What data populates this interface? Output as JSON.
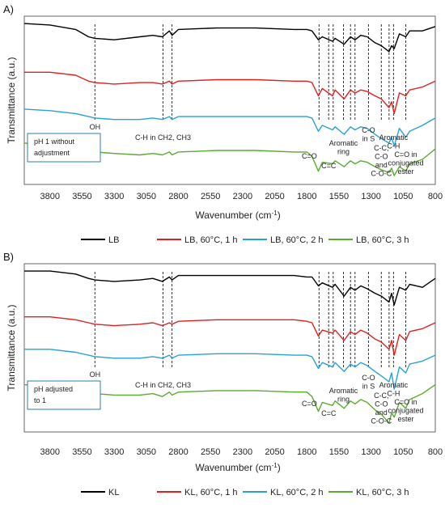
{
  "chart_data": [
    {
      "type": "line",
      "panel_label": "A)",
      "ylabel": "Transmittance (a.u.)",
      "xlabel": "Wavenumber (cm",
      "xlabel_sup": "-1",
      "xlabel_end": ")",
      "xlim": [
        4000,
        800
      ],
      "x_ticks": [
        "3800",
        "3550",
        "3300",
        "3050",
        "2800",
        "2550",
        "2300",
        "2050",
        "1800",
        "1550",
        "1300",
        "1050",
        "800"
      ],
      "box_text": [
        "pH 1 without",
        "adjustment"
      ],
      "series": [
        {
          "name": "LB",
          "color": "#000000",
          "x": [
            4000,
            3800,
            3600,
            3500,
            3450,
            3300,
            3100,
            3000,
            2925,
            2870,
            2850,
            2800,
            2500,
            2200,
            1900,
            1800,
            1760,
            1710,
            1680,
            1600,
            1580,
            1510,
            1460,
            1425,
            1380,
            1330,
            1270,
            1220,
            1160,
            1140,
            1120,
            1080,
            1030,
            1000,
            900,
            800
          ],
          "y": [
            97,
            96,
            93,
            88,
            87,
            86,
            88,
            89,
            88,
            92,
            89,
            93,
            94,
            94,
            93,
            93,
            92,
            86,
            88,
            85,
            87,
            83,
            88,
            86,
            89,
            88,
            84,
            82,
            78,
            82,
            80,
            90,
            88,
            92,
            92,
            95
          ]
        },
        {
          "name": "LB, 60°C, 1 h",
          "color": "#e02020",
          "x": [
            4000,
            3800,
            3600,
            3500,
            3450,
            3300,
            3100,
            3000,
            2925,
            2870,
            2850,
            2800,
            2500,
            2200,
            1900,
            1800,
            1760,
            1710,
            1680,
            1600,
            1580,
            1510,
            1460,
            1425,
            1380,
            1330,
            1270,
            1220,
            1160,
            1140,
            1120,
            1080,
            1030,
            1000,
            900,
            800
          ],
          "y": [
            64,
            64,
            62,
            58,
            57,
            56,
            57,
            57,
            56,
            58,
            56,
            58,
            59,
            59,
            58,
            58,
            57,
            48,
            53,
            48,
            52,
            46,
            52,
            50,
            52,
            51,
            48,
            46,
            40,
            44,
            36,
            50,
            48,
            52,
            54,
            58
          ]
        },
        {
          "name": "LB, 60°C, 2 h",
          "color": "#2aa0d8",
          "x": [
            4000,
            3800,
            3600,
            3500,
            3450,
            3300,
            3100,
            3000,
            2925,
            2870,
            2850,
            2800,
            2500,
            2200,
            1900,
            1800,
            1760,
            1710,
            1680,
            1600,
            1580,
            1510,
            1460,
            1425,
            1380,
            1330,
            1270,
            1220,
            1160,
            1140,
            1120,
            1080,
            1030,
            1000,
            900,
            800
          ],
          "y": [
            39,
            38,
            36,
            34,
            33,
            32,
            32,
            33,
            32,
            34,
            32,
            34,
            34,
            34,
            34,
            34,
            33,
            24,
            28,
            25,
            27,
            22,
            27,
            25,
            27,
            26,
            22,
            19,
            16,
            20,
            14,
            26,
            20,
            24,
            28,
            33
          ]
        },
        {
          "name": "LB, 60°C, 3 h",
          "color": "#5aaa32",
          "x": [
            4000,
            3800,
            3600,
            3500,
            3450,
            3300,
            3100,
            3000,
            2925,
            2870,
            2850,
            2800,
            2500,
            2200,
            1900,
            1800,
            1760,
            1710,
            1680,
            1600,
            1580,
            1510,
            1460,
            1425,
            1380,
            1330,
            1270,
            1220,
            1160,
            1140,
            1120,
            1080,
            1030,
            1000,
            900,
            800
          ],
          "y": [
            16,
            15,
            13,
            11,
            10,
            9,
            8,
            9,
            8,
            10,
            8,
            10,
            11,
            11,
            10,
            10,
            7,
            -3,
            3,
            2,
            4,
            0,
            4,
            2,
            4,
            3,
            0,
            -2,
            -4,
            -1,
            -6,
            0,
            -3,
            2,
            5,
            12
          ]
        }
      ],
      "annotations": [
        {
          "x": 3450,
          "lines": [
            "OH"
          ]
        },
        {
          "x": 2920,
          "lines": [
            "C-H in CH2, CH3"
          ]
        },
        {
          "x": 1705,
          "lines": [
            "C=O"
          ]
        },
        {
          "x": 1630,
          "lines": [
            "C=C"
          ]
        },
        {
          "x": 1515,
          "lines": [
            "Aromatic",
            "ring"
          ]
        },
        {
          "x": 1320,
          "lines": [
            "C-O",
            "in S"
          ]
        },
        {
          "x": 1220,
          "lines": [
            "C-C,",
            "C-O",
            "and",
            "C-O-C"
          ]
        },
        {
          "x": 1125,
          "lines": [
            "Aromatic",
            "C-H"
          ]
        },
        {
          "x": 1030,
          "lines": [
            "C=O in",
            "conjugated",
            "ester"
          ]
        }
      ],
      "marker_x": [
        3450,
        2920,
        2850,
        1705,
        1630,
        1595,
        1515,
        1460,
        1425,
        1320,
        1220,
        1160,
        1125,
        1030
      ]
    },
    {
      "type": "line",
      "panel_label": "B)",
      "ylabel": "Transmittance (a.u.)",
      "xlabel": "Wavenumber (cm",
      "xlabel_sup": "-1",
      "xlabel_end": ")",
      "xlim": [
        4000,
        800
      ],
      "x_ticks": [
        "3800",
        "3550",
        "3300",
        "3050",
        "2800",
        "2550",
        "2300",
        "2050",
        "1800",
        "1550",
        "1300",
        "1050",
        "800"
      ],
      "box_text": [
        "pH adjusted",
        "to 1"
      ],
      "series": [
        {
          "name": "KL",
          "color": "#000000",
          "x": [
            4000,
            3800,
            3600,
            3500,
            3450,
            3300,
            3100,
            3000,
            2925,
            2870,
            2850,
            2800,
            2500,
            2200,
            1900,
            1800,
            1760,
            1710,
            1680,
            1600,
            1580,
            1510,
            1460,
            1425,
            1380,
            1330,
            1270,
            1220,
            1160,
            1140,
            1120,
            1080,
            1030,
            1000,
            900,
            800
          ],
          "y": [
            97,
            97,
            95,
            92,
            91,
            90,
            91,
            92,
            90,
            93,
            91,
            94,
            94,
            94,
            94,
            93,
            93,
            87,
            89,
            86,
            88,
            80,
            86,
            84,
            87,
            85,
            82,
            80,
            76,
            82,
            74,
            86,
            84,
            88,
            86,
            92
          ]
        },
        {
          "name": "KL, 60°C, 1 h",
          "color": "#e02020",
          "x": [
            4000,
            3800,
            3600,
            3500,
            3450,
            3300,
            3100,
            3000,
            2925,
            2870,
            2850,
            2800,
            2500,
            2200,
            1900,
            1800,
            1760,
            1710,
            1680,
            1600,
            1580,
            1510,
            1460,
            1425,
            1380,
            1330,
            1270,
            1220,
            1160,
            1140,
            1120,
            1080,
            1030,
            1000,
            900,
            800
          ],
          "y": [
            66,
            66,
            64,
            62,
            61,
            60,
            61,
            62,
            60,
            62,
            61,
            63,
            64,
            64,
            64,
            63,
            62,
            53,
            57,
            55,
            57,
            50,
            56,
            54,
            57,
            55,
            51,
            49,
            44,
            50,
            40,
            54,
            50,
            56,
            58,
            62
          ]
        },
        {
          "name": "KL, 60°C, 2 h",
          "color": "#2aa0d8",
          "x": [
            4000,
            3800,
            3600,
            3500,
            3450,
            3300,
            3100,
            3000,
            2925,
            2870,
            2850,
            2800,
            2500,
            2200,
            1900,
            1800,
            1760,
            1710,
            1680,
            1600,
            1580,
            1510,
            1460,
            1425,
            1380,
            1330,
            1270,
            1220,
            1160,
            1140,
            1120,
            1080,
            1030,
            1000,
            900,
            800
          ],
          "y": [
            44,
            44,
            42,
            40,
            39,
            38,
            38,
            39,
            38,
            40,
            38,
            40,
            41,
            41,
            40,
            40,
            39,
            31,
            35,
            32,
            35,
            29,
            34,
            32,
            35,
            33,
            29,
            26,
            22,
            28,
            17,
            32,
            28,
            34,
            36,
            40
          ]
        },
        {
          "name": "KL, 60°C, 3 h",
          "color": "#5aaa32",
          "x": [
            4000,
            3800,
            3600,
            3500,
            3450,
            3300,
            3100,
            3000,
            2925,
            2870,
            2850,
            2800,
            2500,
            2200,
            1900,
            1800,
            1760,
            1710,
            1680,
            1600,
            1580,
            1510,
            1460,
            1425,
            1380,
            1330,
            1270,
            1220,
            1160,
            1140,
            1120,
            1080,
            1030,
            1000,
            900,
            800
          ],
          "y": [
            20,
            19,
            17,
            15,
            14,
            13,
            13,
            14,
            12,
            15,
            13,
            15,
            16,
            16,
            15,
            15,
            12,
            2,
            8,
            6,
            9,
            4,
            9,
            7,
            10,
            8,
            3,
            0,
            -6,
            1,
            -2,
            8,
            4,
            10,
            14,
            20
          ]
        }
      ],
      "annotations": [
        {
          "x": 3450,
          "lines": [
            "OH"
          ]
        },
        {
          "x": 2920,
          "lines": [
            "C-H in CH2, CH3"
          ]
        },
        {
          "x": 1705,
          "lines": [
            "C=O"
          ]
        },
        {
          "x": 1630,
          "lines": [
            "C=C"
          ]
        },
        {
          "x": 1515,
          "lines": [
            "Aromatic",
            "ring"
          ]
        },
        {
          "x": 1320,
          "lines": [
            "C-O",
            "in S"
          ]
        },
        {
          "x": 1220,
          "lines": [
            "C-C,",
            "C-O",
            "and",
            "C-O-C"
          ]
        },
        {
          "x": 1125,
          "lines": [
            "Aromatic",
            "C-H"
          ]
        },
        {
          "x": 1030,
          "lines": [
            "C=O in",
            "conjugated",
            "ester"
          ]
        }
      ],
      "marker_x": [
        3450,
        2920,
        2850,
        1705,
        1630,
        1595,
        1515,
        1460,
        1425,
        1320,
        1220,
        1160,
        1125,
        1030
      ]
    }
  ]
}
